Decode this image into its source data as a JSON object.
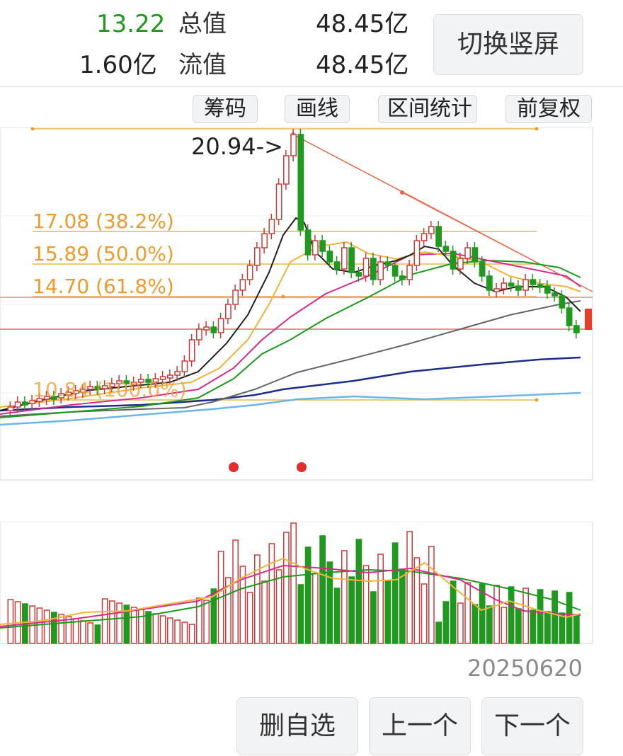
{
  "header": {
    "price": "13.22",
    "total_label": "总值",
    "total_value": "48.45亿",
    "volume": "1.60亿",
    "float_label": "流值",
    "float_value": "48.45亿",
    "switch_label": "切换竖屏"
  },
  "toolbar": {
    "chips_label": "筹码",
    "draw_label": "画线",
    "range_label": "区间统计",
    "adjust_label": "前复权"
  },
  "chart": {
    "peak_label": "20.94->",
    "fib_levels": [
      {
        "label": "17.08 (38.2%)"
      },
      {
        "label": "15.89 (50.0%)"
      },
      {
        "label": "14.70 (61.8%)"
      },
      {
        "label": "10.84 (100.0%)"
      }
    ],
    "date_label": "20250620",
    "colors": {
      "up": "#d23a3a",
      "down": "#1f9a1f",
      "ma5": "#222",
      "ma10": "#f0b43a",
      "ma20": "#d42b8c",
      "ma30": "#2a9a2a",
      "ma60": "#666",
      "ma120": "#1d2d8a",
      "ma250": "#69b6ea"
    }
  },
  "footer": {
    "remove_label": "删自选",
    "prev_label": "上一个",
    "next_label": "下一个"
  }
}
